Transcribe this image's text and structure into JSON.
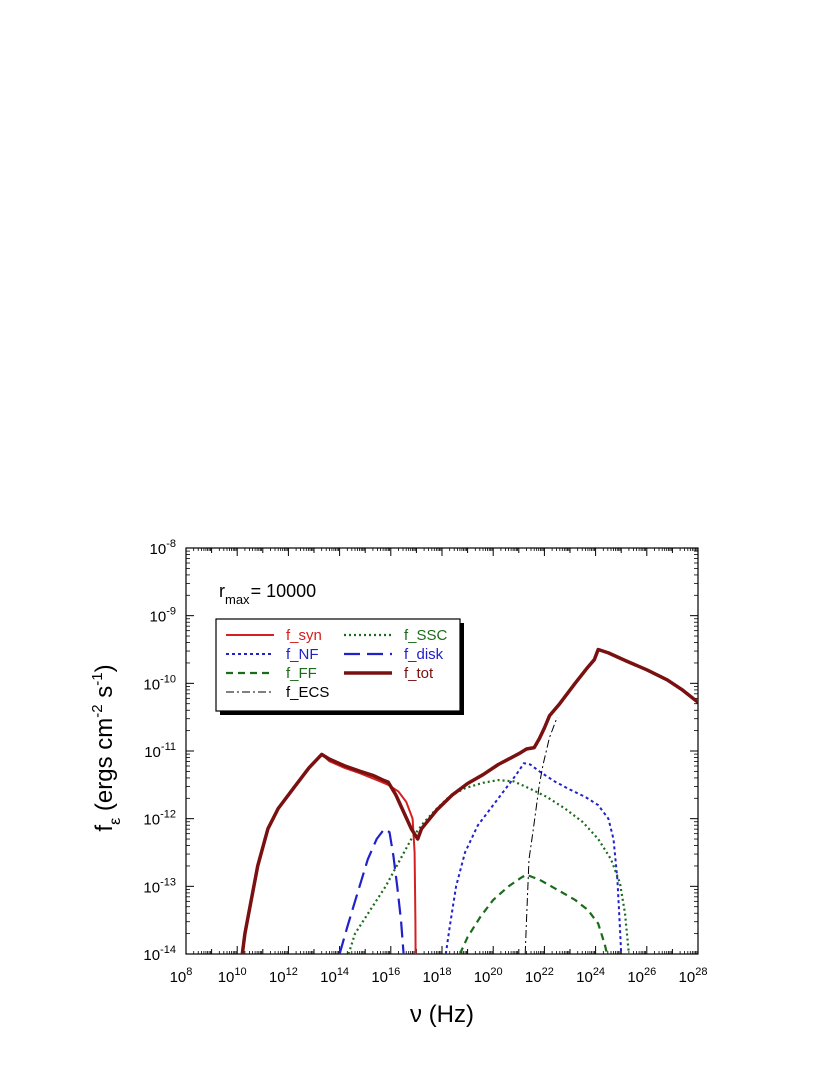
{
  "chart_data": {
    "type": "line",
    "x_scale": "log",
    "y_scale": "log",
    "xlim": [
      100000000.0,
      1e+28
    ],
    "ylim": [
      1e-14,
      1e-08
    ],
    "x_ticks": [
      {
        "base": "10",
        "exp": "8"
      },
      {
        "base": "10",
        "exp": "10"
      },
      {
        "base": "10",
        "exp": "12"
      },
      {
        "base": "10",
        "exp": "14"
      },
      {
        "base": "10",
        "exp": "16"
      },
      {
        "base": "10",
        "exp": "18"
      },
      {
        "base": "10",
        "exp": "20"
      },
      {
        "base": "10",
        "exp": "22"
      },
      {
        "base": "10",
        "exp": "24"
      },
      {
        "base": "10",
        "exp": "26"
      },
      {
        "base": "10",
        "exp": "28"
      }
    ],
    "y_ticks": [
      {
        "base": "10",
        "exp": "-14"
      },
      {
        "base": "10",
        "exp": "-13"
      },
      {
        "base": "10",
        "exp": "-12"
      },
      {
        "base": "10",
        "exp": "-11"
      },
      {
        "base": "10",
        "exp": "-10"
      },
      {
        "base": "10",
        "exp": "-9"
      },
      {
        "base": "10",
        "exp": "-8"
      }
    ],
    "xlabel": {
      "nu": "ν",
      "rest": " (Hz)"
    },
    "ylabel": {
      "f": "f",
      "sub": "ε",
      "a": " (ergs cm",
      "exp1": "-2",
      "b": " s",
      "exp2": "-1",
      "c": ")"
    },
    "annotation": {
      "r": "r",
      "sub": "max",
      "value": "= 10000"
    },
    "legend_position": "upper-left",
    "grid": false,
    "series": [
      {
        "name": "f_syn",
        "color": "#d42020",
        "dash": "solid",
        "width": 2,
        "points": [
          [
            10.2,
            -14
          ],
          [
            10.3,
            -13.7
          ],
          [
            10.5,
            -13.3
          ],
          [
            10.8,
            -12.7
          ],
          [
            11.2,
            -12.15
          ],
          [
            11.6,
            -11.85
          ],
          [
            12.2,
            -11.55
          ],
          [
            12.8,
            -11.25
          ],
          [
            13.3,
            -11.05
          ],
          [
            13.6,
            -11.15
          ],
          [
            14.2,
            -11.25
          ],
          [
            14.8,
            -11.33
          ],
          [
            15.4,
            -11.42
          ],
          [
            15.9,
            -11.5
          ],
          [
            16.3,
            -11.6
          ],
          [
            16.6,
            -11.75
          ],
          [
            16.85,
            -12.0
          ],
          [
            16.93,
            -12.5
          ],
          [
            16.96,
            -13.5
          ],
          [
            16.97,
            -14
          ]
        ]
      },
      {
        "name": "f_NF",
        "color": "#2020cc",
        "dash": "3,3",
        "width": 2,
        "points": [
          [
            18.15,
            -14
          ],
          [
            18.3,
            -13.6
          ],
          [
            18.55,
            -13.0
          ],
          [
            18.9,
            -12.5
          ],
          [
            19.4,
            -12.1
          ],
          [
            20.0,
            -11.8
          ],
          [
            20.5,
            -11.55
          ],
          [
            20.9,
            -11.35
          ],
          [
            21.2,
            -11.18
          ],
          [
            21.45,
            -11.2
          ],
          [
            21.8,
            -11.3
          ],
          [
            22.4,
            -11.45
          ],
          [
            23.0,
            -11.57
          ],
          [
            23.6,
            -11.68
          ],
          [
            24.1,
            -11.8
          ],
          [
            24.5,
            -12.0
          ],
          [
            24.7,
            -12.3
          ],
          [
            24.85,
            -12.9
          ],
          [
            24.95,
            -13.6
          ],
          [
            25.0,
            -14
          ]
        ]
      },
      {
        "name": "f_FF",
        "color": "#1a6b1a",
        "dash": "7,5",
        "width": 2.2,
        "points": [
          [
            18.7,
            -14
          ],
          [
            19.0,
            -13.75
          ],
          [
            19.5,
            -13.45
          ],
          [
            20.0,
            -13.2
          ],
          [
            20.6,
            -13.0
          ],
          [
            21.1,
            -12.87
          ],
          [
            21.3,
            -12.83
          ],
          [
            21.8,
            -12.9
          ],
          [
            22.5,
            -13.05
          ],
          [
            23.2,
            -13.2
          ],
          [
            23.7,
            -13.35
          ],
          [
            24.1,
            -13.55
          ],
          [
            24.35,
            -13.85
          ],
          [
            24.45,
            -14
          ]
        ]
      },
      {
        "name": "f_ECS",
        "color": "#000000",
        "dash": "8,3,2,3",
        "width": 1,
        "points": [
          [
            21.25,
            -14
          ],
          [
            21.3,
            -13.5
          ],
          [
            21.4,
            -12.6
          ],
          [
            21.55,
            -12.2
          ],
          [
            21.8,
            -11.5
          ],
          [
            21.95,
            -11.2
          ],
          [
            22.2,
            -10.8
          ],
          [
            22.5,
            -10.5
          ]
        ]
      },
      {
        "name": "f_SSC",
        "color": "#1a6b1a",
        "dash": "2,3",
        "width": 2.2,
        "points": [
          [
            14.35,
            -14
          ],
          [
            14.6,
            -13.7
          ],
          [
            15.2,
            -13.35
          ],
          [
            15.8,
            -13.0
          ],
          [
            16.3,
            -12.65
          ],
          [
            16.8,
            -12.3
          ],
          [
            17.3,
            -12.05
          ],
          [
            17.8,
            -11.85
          ],
          [
            18.3,
            -11.67
          ],
          [
            18.9,
            -11.55
          ],
          [
            19.6,
            -11.47
          ],
          [
            20.2,
            -11.43
          ],
          [
            20.8,
            -11.45
          ],
          [
            21.4,
            -11.55
          ],
          [
            22.1,
            -11.68
          ],
          [
            22.8,
            -11.85
          ],
          [
            23.5,
            -12.05
          ],
          [
            24.1,
            -12.3
          ],
          [
            24.6,
            -12.6
          ],
          [
            24.95,
            -12.95
          ],
          [
            25.15,
            -13.4
          ],
          [
            25.25,
            -13.8
          ],
          [
            25.3,
            -14
          ]
        ]
      },
      {
        "name": "f_disk",
        "color": "#2020cc",
        "dash": "16,7",
        "width": 2.2,
        "points": [
          [
            14.0,
            -14
          ],
          [
            14.3,
            -13.6
          ],
          [
            14.7,
            -13.1
          ],
          [
            15.1,
            -12.6
          ],
          [
            15.45,
            -12.3
          ],
          [
            15.75,
            -12.15
          ],
          [
            15.95,
            -12.2
          ],
          [
            16.1,
            -12.55
          ],
          [
            16.25,
            -13.0
          ],
          [
            16.4,
            -13.5
          ],
          [
            16.5,
            -14
          ]
        ]
      },
      {
        "name": "f_tot",
        "color": "#7a1010",
        "dash": "solid",
        "width": 3.5,
        "points": [
          [
            10.2,
            -14
          ],
          [
            10.3,
            -13.7
          ],
          [
            10.5,
            -13.3
          ],
          [
            10.8,
            -12.7
          ],
          [
            11.2,
            -12.15
          ],
          [
            11.6,
            -11.85
          ],
          [
            12.2,
            -11.55
          ],
          [
            12.8,
            -11.25
          ],
          [
            13.3,
            -11.05
          ],
          [
            13.6,
            -11.12
          ],
          [
            14.2,
            -11.22
          ],
          [
            14.8,
            -11.3
          ],
          [
            15.3,
            -11.36
          ],
          [
            15.7,
            -11.43
          ],
          [
            15.9,
            -11.46
          ],
          [
            16.2,
            -11.65
          ],
          [
            16.5,
            -11.9
          ],
          [
            16.8,
            -12.15
          ],
          [
            17.05,
            -12.3
          ],
          [
            17.2,
            -12.15
          ],
          [
            17.8,
            -11.87
          ],
          [
            18.4,
            -11.65
          ],
          [
            19.0,
            -11.48
          ],
          [
            19.6,
            -11.35
          ],
          [
            20.2,
            -11.2
          ],
          [
            20.7,
            -11.1
          ],
          [
            21.0,
            -11.04
          ],
          [
            21.3,
            -10.97
          ],
          [
            21.6,
            -10.95
          ],
          [
            21.8,
            -10.82
          ],
          [
            22.0,
            -10.66
          ],
          [
            22.2,
            -10.48
          ],
          [
            22.6,
            -10.3
          ],
          [
            23.2,
            -10.0
          ],
          [
            23.7,
            -9.76
          ],
          [
            23.95,
            -9.65
          ],
          [
            24.1,
            -9.5
          ],
          [
            24.5,
            -9.55
          ],
          [
            25.2,
            -9.67
          ],
          [
            26.0,
            -9.8
          ],
          [
            26.8,
            -9.95
          ],
          [
            27.4,
            -10.1
          ],
          [
            28.0,
            -10.28
          ]
        ]
      }
    ]
  },
  "legend": {
    "left_column": [
      "f_syn",
      "f_NF",
      "f_FF",
      "f_ECS"
    ],
    "right_column": [
      "f_SSC",
      "f_disk",
      "f_tot"
    ]
  }
}
